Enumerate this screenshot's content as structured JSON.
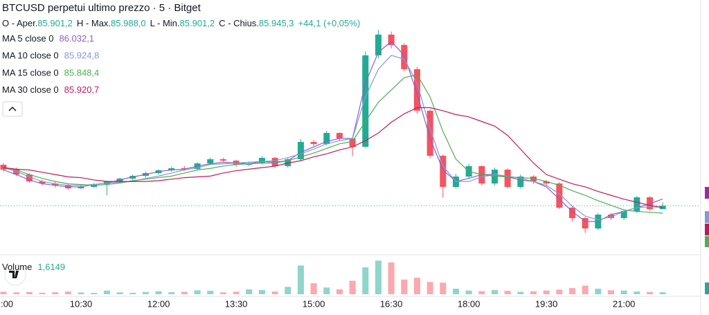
{
  "chart_data": {
    "type": "candlestick",
    "title": "BTCUSD perpetui ultimo prezzo · 5 · Bitget",
    "legend_ohlc": [
      {
        "label": "O - Aper.",
        "value": "85.901,2"
      },
      {
        "label": "H - Max.",
        "value": "85.988,0"
      },
      {
        "label": "L - Min.",
        "value": "85.901,2"
      },
      {
        "label": "C - Chius.",
        "value": "85.945,3"
      }
    ],
    "change": "+44,1 (+0,05%)",
    "up_color": "#22ab94",
    "down_color": "#f7525f",
    "ylim": [
      85.55,
      88.35
    ],
    "categories": [
      ":00",
      null,
      null,
      null,
      null,
      null,
      "10:30",
      null,
      null,
      null,
      null,
      null,
      "12:00",
      null,
      null,
      null,
      null,
      null,
      "13:30",
      null,
      null,
      null,
      null,
      null,
      "15:00",
      null,
      null,
      null,
      null,
      null,
      "16:30",
      null,
      null,
      null,
      null,
      null,
      "18:00",
      null,
      null,
      null,
      null,
      null,
      "19:30",
      null,
      null,
      null,
      null,
      null,
      "21:00",
      null,
      null,
      null
    ],
    "open": [
      86.477,
      86.414,
      86.351,
      86.261,
      86.234,
      86.207,
      86.171,
      86.189,
      86.225,
      86.261,
      86.297,
      86.333,
      86.369,
      86.405,
      86.432,
      86.423,
      86.495,
      86.549,
      86.531,
      86.477,
      86.495,
      86.567,
      86.459,
      86.549,
      86.774,
      86.747,
      86.891,
      86.819,
      86.711,
      87.9,
      88.17,
      88.035,
      87.72,
      87.18,
      86.594,
      86.189,
      86.324,
      86.459,
      86.234,
      86.414,
      86.189,
      86.324,
      86.261,
      86.234,
      85.919,
      85.784,
      85.649,
      85.829,
      85.784,
      85.874,
      86.054,
      85.901
    ],
    "high": [
      86.5,
      86.44,
      86.37,
      86.28,
      86.26,
      86.23,
      86.21,
      86.24,
      86.27,
      86.31,
      86.35,
      86.39,
      86.42,
      86.45,
      86.46,
      86.51,
      86.57,
      86.57,
      86.54,
      86.52,
      86.59,
      86.58,
      86.57,
      86.81,
      86.8,
      86.92,
      86.9,
      86.83,
      87.95,
      88.23,
      88.21,
      88.06,
      87.75,
      87.2,
      86.61,
      86.36,
      86.49,
      86.47,
      86.44,
      86.43,
      86.35,
      86.34,
      86.28,
      86.25,
      85.94,
      85.8,
      85.85,
      85.85,
      85.89,
      86.07,
      86.07,
      85.988
    ],
    "low": [
      86.39,
      86.33,
      86.24,
      86.21,
      86.18,
      86.15,
      86.16,
      86.18,
      86.08,
      86.24,
      86.28,
      86.31,
      86.35,
      86.39,
      86.4,
      86.41,
      86.48,
      86.51,
      86.45,
      86.46,
      86.48,
      86.44,
      86.44,
      86.52,
      86.72,
      86.73,
      86.79,
      86.59,
      86.7,
      87.86,
      87.99,
      87.69,
      87.14,
      86.56,
      86.05,
      86.17,
      86.3,
      86.21,
      86.21,
      86.17,
      86.17,
      86.23,
      86.2,
      85.9,
      85.74,
      85.59,
      85.63,
      85.76,
      85.76,
      85.85,
      85.88,
      85.901
    ],
    "close": [
      86.414,
      86.351,
      86.261,
      86.234,
      86.207,
      86.171,
      86.189,
      86.225,
      86.261,
      86.297,
      86.333,
      86.369,
      86.405,
      86.432,
      86.423,
      86.495,
      86.549,
      86.531,
      86.477,
      86.495,
      86.567,
      86.459,
      86.549,
      86.774,
      86.747,
      86.891,
      86.819,
      86.711,
      87.9,
      88.17,
      88.035,
      87.72,
      87.18,
      86.594,
      86.189,
      86.324,
      86.459,
      86.234,
      86.414,
      86.189,
      86.324,
      86.261,
      86.234,
      85.919,
      85.784,
      85.649,
      85.829,
      85.784,
      85.874,
      86.054,
      85.901,
      85.945
    ],
    "series": [
      {
        "name": "MA 5 close 0",
        "color": "#8e5fc9",
        "last_label": "86.032,1",
        "values": [
          86.41,
          86.35,
          86.28,
          86.23,
          86.21,
          86.19,
          86.19,
          86.22,
          86.24,
          86.28,
          86.32,
          86.35,
          86.39,
          86.41,
          86.42,
          86.46,
          86.49,
          86.51,
          86.5,
          86.49,
          86.52,
          86.51,
          86.53,
          86.64,
          86.71,
          86.78,
          86.82,
          86.82,
          87.54,
          87.94,
          88.08,
          87.9,
          87.4,
          86.82,
          86.41,
          86.26,
          86.3,
          86.35,
          86.35,
          86.32,
          86.28,
          86.26,
          86.19,
          86.03,
          85.87,
          85.74,
          85.74,
          85.83,
          85.87,
          85.92,
          85.97,
          86.032
        ]
      },
      {
        "name": "MA 10 close 0",
        "color": "#7f9bd8",
        "last_label": "85.924,8",
        "values": [
          86.44,
          86.39,
          86.32,
          86.26,
          86.23,
          86.21,
          86.21,
          86.22,
          86.24,
          86.25,
          86.26,
          86.3,
          86.33,
          86.37,
          86.41,
          86.44,
          86.48,
          86.49,
          86.5,
          86.51,
          86.52,
          86.53,
          86.57,
          86.62,
          86.68,
          86.75,
          86.79,
          86.82,
          87.36,
          87.72,
          87.9,
          87.85,
          87.54,
          86.95,
          86.46,
          86.26,
          86.26,
          86.32,
          86.35,
          86.33,
          86.3,
          86.26,
          86.21,
          86.1,
          85.94,
          85.81,
          85.76,
          85.8,
          85.87,
          85.92,
          85.93,
          85.925
        ]
      },
      {
        "name": "MA 15 close 0",
        "color": "#4caf50",
        "last_label": "85.848,4",
        "values": [
          86.44,
          86.41,
          86.35,
          86.3,
          86.26,
          86.23,
          86.22,
          86.21,
          86.22,
          86.24,
          86.27,
          86.29,
          86.31,
          86.33,
          86.37,
          86.41,
          86.43,
          86.46,
          86.48,
          86.49,
          86.5,
          86.5,
          86.53,
          86.58,
          86.63,
          86.69,
          86.75,
          86.78,
          87.04,
          87.29,
          87.45,
          87.61,
          87.65,
          87.36,
          86.91,
          86.55,
          86.39,
          86.35,
          86.33,
          86.32,
          86.31,
          86.3,
          86.26,
          86.21,
          86.14,
          86.08,
          86.01,
          85.95,
          85.89,
          85.87,
          85.86,
          85.848
        ]
      },
      {
        "name": "MA 30 close 0",
        "color": "#c2185b",
        "last_label": "85.920,7",
        "values": [
          86.44,
          86.42,
          86.41,
          86.38,
          86.35,
          86.32,
          86.31,
          86.28,
          86.26,
          86.26,
          86.26,
          86.26,
          86.27,
          86.29,
          86.31,
          86.32,
          86.33,
          86.37,
          86.4,
          86.42,
          86.44,
          86.46,
          86.5,
          86.53,
          86.58,
          86.62,
          86.67,
          86.71,
          86.79,
          86.89,
          87.03,
          87.14,
          87.22,
          87.22,
          87.18,
          87.13,
          87.1,
          87.04,
          86.98,
          86.86,
          86.68,
          86.5,
          86.35,
          86.29,
          86.23,
          86.19,
          86.13,
          86.08,
          86.03,
          85.99,
          85.95,
          85.921
        ]
      }
    ],
    "volume": {
      "name": "Volume",
      "last_label": "1,6149",
      "ylim": [
        0,
        30
      ],
      "values": [
        2.0,
        1.5,
        1.8,
        1.2,
        1.6,
        2.2,
        1.4,
        1.1,
        3.0,
        1.5,
        1.2,
        1.9,
        2.4,
        1.6,
        2.0,
        3.2,
        2.8,
        1.5,
        2.1,
        4.0,
        3.5,
        2.2,
        6.0,
        23.5,
        9.0,
        5.5,
        4.0,
        11.0,
        22.0,
        27.5,
        26.0,
        12.0,
        13.5,
        10.0,
        9.5,
        4.5,
        3.0,
        2.5,
        3.5,
        2.8,
        2.0,
        2.4,
        3.0,
        3.8,
        5.0,
        7.0,
        4.5,
        3.2,
        3.0,
        2.2,
        1.8,
        1.6149
      ]
    }
  }
}
